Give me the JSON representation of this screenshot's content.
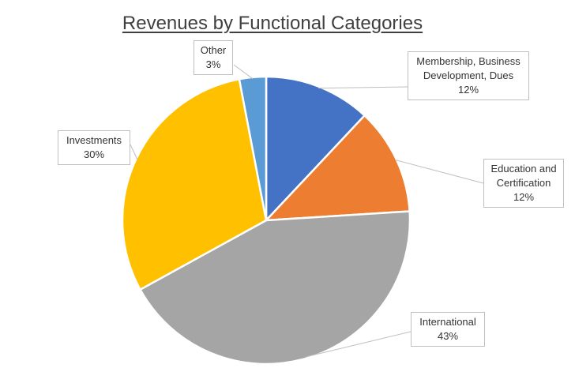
{
  "chart_data": {
    "type": "pie",
    "title": "Revenues by Functional Categories",
    "slices": [
      {
        "name": "Membership, Business Development, Dues",
        "name_lines": [
          "Membership, Business",
          "Development, Dues"
        ],
        "value": 12,
        "label": "12%",
        "color": "#4472C4"
      },
      {
        "name": "Education and Certification",
        "name_lines": [
          "Education and",
          "Certification"
        ],
        "value": 12,
        "label": "12%",
        "color": "#ED7D31"
      },
      {
        "name": "International",
        "name_lines": [
          "International"
        ],
        "value": 43,
        "label": "43%",
        "color": "#A5A5A5"
      },
      {
        "name": "Investments",
        "name_lines": [
          "Investments"
        ],
        "value": 30,
        "label": "30%",
        "color": "#FFC000"
      },
      {
        "name": "Other",
        "name_lines": [
          "Other"
        ],
        "value": 3,
        "label": "3%",
        "color": "#5B9BD5"
      }
    ]
  }
}
